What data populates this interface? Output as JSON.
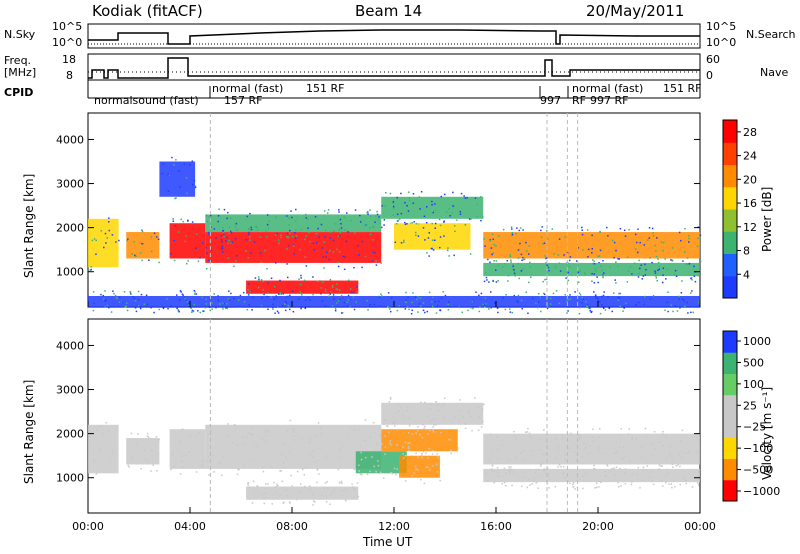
{
  "header": {
    "station": "Kodiak (fitACF)",
    "beam": "Beam 14",
    "date": "20/May/2011"
  },
  "left_labels": {
    "nsky": "N.Sky",
    "freq": "Freq.",
    "freq_unit": "[MHz]",
    "cpid": "CPID"
  },
  "right_labels": {
    "nsearch": "N.Search",
    "nave": "Nave"
  },
  "nsky_ticks": [
    "10^5",
    "10^0"
  ],
  "nsearch_ticks": [
    "10^5",
    "10^0"
  ],
  "freq_ticks": [
    "18",
    "8"
  ],
  "nave_ticks": [
    "60",
    "0"
  ],
  "cpid_labels": [
    "normalsound (fast)",
    "157 RF",
    "normal (fast)",
    "151 RF",
    "997",
    "RF",
    "normal (fast)",
    "997 RF",
    "151 RF"
  ],
  "colors": {
    "red": "#ff0000",
    "orange": "#ff8c00",
    "yellow": "#ffd700",
    "green": "#3cb371",
    "blue": "#1e3cff",
    "grey": "#c8c8c8"
  },
  "chart_data": [
    {
      "type": "heatmap",
      "title": "",
      "xlabel": "",
      "ylabel": "Slant Range [km]",
      "x_ticks": [
        "00:00",
        "04:00",
        "08:00",
        "12:00",
        "16:00",
        "20:00",
        "00:00"
      ],
      "y_ticks": [
        "1000",
        "2000",
        "3000",
        "4000"
      ],
      "ylim": [
        200,
        4600
      ],
      "colorbar": {
        "label": "Power [dB]",
        "ticks": [
          "4",
          "8",
          "12",
          "16",
          "20",
          "24",
          "28"
        ],
        "range": [
          0,
          30
        ]
      },
      "bands": [
        {
          "t0": 0.0,
          "t1": 1.2,
          "r0": 1100,
          "r1": 2200,
          "value": 20
        },
        {
          "t0": 1.5,
          "t1": 2.8,
          "r0": 1300,
          "r1": 1900,
          "value": 24
        },
        {
          "t0": 3.2,
          "t1": 4.6,
          "r0": 1300,
          "r1": 2100,
          "value": 26
        },
        {
          "t0": 2.8,
          "t1": 4.2,
          "r0": 2700,
          "r1": 3500,
          "value": 10
        },
        {
          "t0": 4.6,
          "t1": 11.5,
          "r0": 1200,
          "r1": 1900,
          "value": 26
        },
        {
          "t0": 4.6,
          "t1": 11.5,
          "r0": 1900,
          "r1": 2300,
          "value": 14
        },
        {
          "t0": 6.2,
          "t1": 10.6,
          "r0": 500,
          "r1": 800,
          "value": 27
        },
        {
          "t0": 11.5,
          "t1": 15.5,
          "r0": 2200,
          "r1": 2700,
          "value": 12
        },
        {
          "t0": 12.0,
          "t1": 15.0,
          "r0": 1500,
          "r1": 2100,
          "value": 18
        },
        {
          "t0": 15.5,
          "t1": 24.0,
          "r0": 1300,
          "r1": 1900,
          "value": 24
        },
        {
          "t0": 15.5,
          "t1": 24.0,
          "r0": 900,
          "r1": 1200,
          "value": 14
        },
        {
          "t0": 0.0,
          "t1": 24.0,
          "r0": 200,
          "r1": 450,
          "value": 8
        }
      ]
    },
    {
      "type": "heatmap",
      "title": "",
      "xlabel": "Time UT",
      "ylabel": "Slant Range [km]",
      "x_ticks": [
        "00:00",
        "04:00",
        "08:00",
        "12:00",
        "16:00",
        "20:00",
        "00:00"
      ],
      "y_ticks": [
        "1000",
        "2000",
        "3000",
        "4000"
      ],
      "ylim": [
        200,
        4600
      ],
      "colorbar": {
        "label": "Velocity [m s⁻¹]",
        "ticks": [
          "1000",
          "500",
          "100",
          "25",
          "−25",
          "−100",
          "−500",
          "−1000"
        ],
        "range": [
          -1200,
          1200
        ]
      },
      "bands": [
        {
          "t0": 0.0,
          "t1": 1.2,
          "r0": 1100,
          "r1": 2200,
          "value": 0
        },
        {
          "t0": 1.5,
          "t1": 2.8,
          "r0": 1300,
          "r1": 1900,
          "value": 0
        },
        {
          "t0": 3.2,
          "t1": 4.6,
          "r0": 1200,
          "r1": 2100,
          "value": 0
        },
        {
          "t0": 4.6,
          "t1": 11.5,
          "r0": 1200,
          "r1": 2200,
          "value": 0
        },
        {
          "t0": 6.2,
          "t1": 10.6,
          "r0": 500,
          "r1": 800,
          "value": 0
        },
        {
          "t0": 10.5,
          "t1": 12.5,
          "r0": 1100,
          "r1": 1600,
          "value": 150
        },
        {
          "t0": 12.2,
          "t1": 13.8,
          "r0": 1000,
          "r1": 1500,
          "value": -120
        },
        {
          "t0": 11.5,
          "t1": 14.5,
          "r0": 1600,
          "r1": 2100,
          "value": -400
        },
        {
          "t0": 11.5,
          "t1": 15.5,
          "r0": 2200,
          "r1": 2700,
          "value": 0
        },
        {
          "t0": 15.5,
          "t1": 24.0,
          "r0": 1300,
          "r1": 2000,
          "value": 0
        },
        {
          "t0": 15.5,
          "t1": 24.0,
          "r0": 900,
          "r1": 1200,
          "value": 0
        }
      ]
    }
  ]
}
